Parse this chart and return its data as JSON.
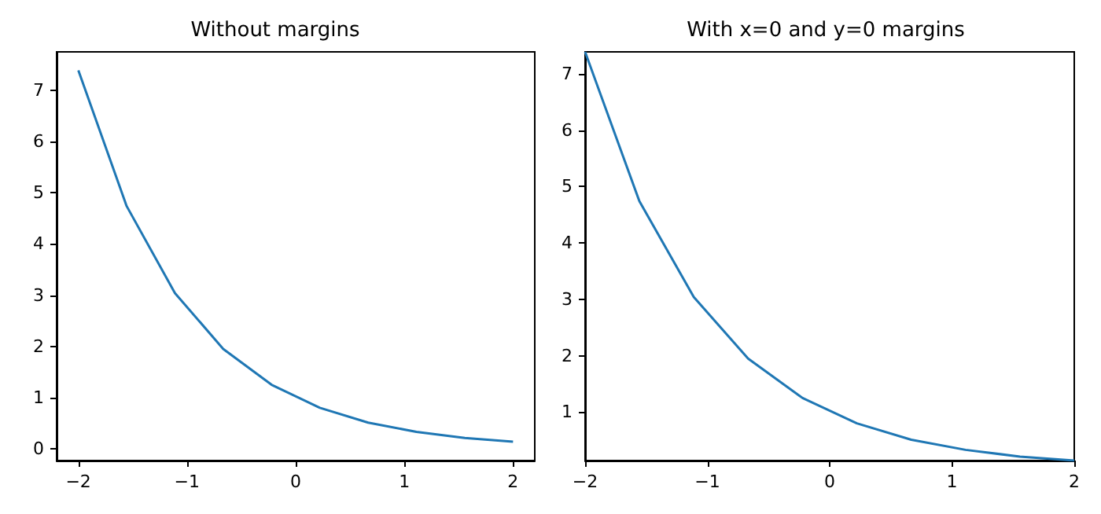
{
  "chart_data": [
    {
      "type": "line",
      "title": "Without margins",
      "x": [
        -2,
        -1.556,
        -1.111,
        -0.667,
        -0.222,
        0.222,
        0.667,
        1.111,
        1.556,
        2
      ],
      "values": [
        7.39,
        4.74,
        3.04,
        1.95,
        1.25,
        0.8,
        0.51,
        0.33,
        0.21,
        0.14
      ],
      "color": "#1f77b4",
      "xlim": [
        -2.2,
        2.2
      ],
      "ylim": [
        -0.23,
        7.75
      ],
      "xticks": [
        -2,
        -1,
        0,
        1,
        2
      ],
      "yticks": [
        0,
        1,
        2,
        3,
        4,
        5,
        6,
        7
      ],
      "grid": false,
      "marker": "none",
      "line_style": "solid"
    },
    {
      "type": "line",
      "title": "With x=0 and y=0 margins",
      "x": [
        -2,
        -1.556,
        -1.111,
        -0.667,
        -0.222,
        0.222,
        0.667,
        1.111,
        1.556,
        2
      ],
      "values": [
        7.39,
        4.74,
        3.04,
        1.95,
        1.25,
        0.8,
        0.51,
        0.33,
        0.21,
        0.14
      ],
      "color": "#1f77b4",
      "xlim": [
        -2,
        2
      ],
      "ylim": [
        0.14,
        7.39
      ],
      "xticks": [
        -2,
        -1,
        0,
        1,
        2
      ],
      "yticks": [
        1,
        2,
        3,
        4,
        5,
        6,
        7
      ],
      "grid": false,
      "marker": "none",
      "line_style": "solid"
    }
  ]
}
